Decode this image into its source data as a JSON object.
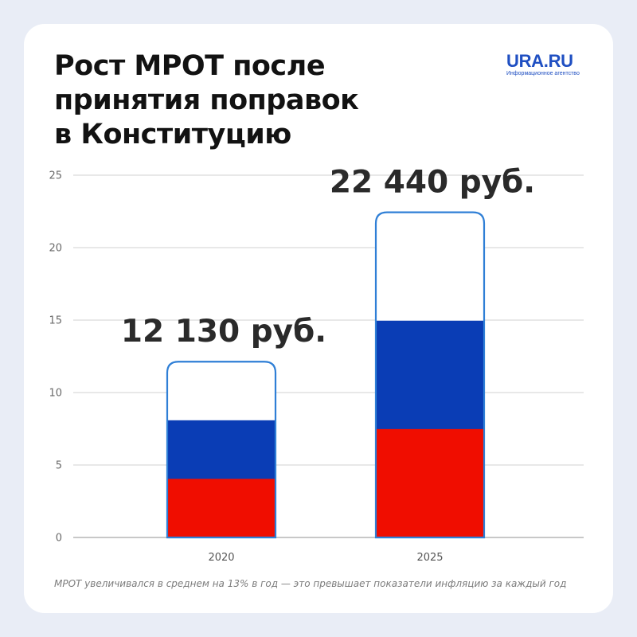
{
  "title_lines": [
    "Рост МРОТ после",
    "принятия поправок",
    "в Конституцию"
  ],
  "logo": {
    "name": "URA.RU",
    "tagline": "Информационное агентство"
  },
  "footnote": "МРОТ увеличивался в среднем на 13% в год — это превышает показатели инфляцию за каждый год",
  "colors": {
    "flag_white": "#ffffff",
    "flag_blue": "#0a3db5",
    "flag_red": "#f00d00",
    "bar_outline": "#2f7fd6",
    "logo_blue": "#1f4fc2",
    "grid": "#d9d9d9"
  },
  "chart_data": {
    "type": "bar",
    "categories": [
      "2020",
      "2025"
    ],
    "values": [
      12.13,
      22.44
    ],
    "data_labels": [
      "12 130 руб.",
      "22 440 руб."
    ],
    "y_ticks": [
      "0",
      "5",
      "10",
      "15",
      "20",
      "25"
    ],
    "ylim": [
      0,
      25
    ],
    "grid": true,
    "bar_style": "russian-flag-tricolor"
  }
}
